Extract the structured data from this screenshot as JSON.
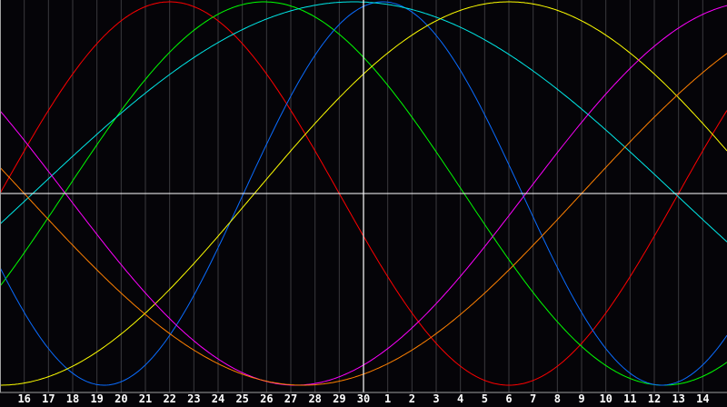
{
  "chart_data": {
    "type": "line",
    "title": "",
    "xlabel": "",
    "ylabel": "",
    "x": [
      "16",
      "17",
      "18",
      "19",
      "20",
      "21",
      "22",
      "23",
      "24",
      "25",
      "26",
      "27",
      "28",
      "29",
      "30",
      "1",
      "2",
      "3",
      "4",
      "5",
      "6",
      "7",
      "8",
      "9",
      "10",
      "11",
      "12",
      "13",
      "14"
    ],
    "current_day": "30",
    "ylim": [
      -1,
      1
    ],
    "grid": true,
    "background": "#050408",
    "series": [
      {
        "color": "#ff0000",
        "period_days": 28,
        "peak_offset_days_from_current": -8.0
      },
      {
        "color": "#00ff00",
        "period_days": 33,
        "peak_offset_days_from_current": -4.1
      },
      {
        "color": "#0a6cff",
        "period_days": 23,
        "peak_offset_days_from_current": 0.8
      },
      {
        "color": "#00e8e8",
        "period_days": 53,
        "peak_offset_days_from_current": -0.4
      },
      {
        "color": "#ffff00",
        "period_days": 42,
        "peak_offset_days_from_current": 6.0
      },
      {
        "color": "#ff00ff",
        "period_days": 38,
        "peak_offset_days_from_current": 16.2
      },
      {
        "color": "#ff8000",
        "period_days": 46,
        "peak_offset_days_from_current": 20.5
      }
    ]
  }
}
